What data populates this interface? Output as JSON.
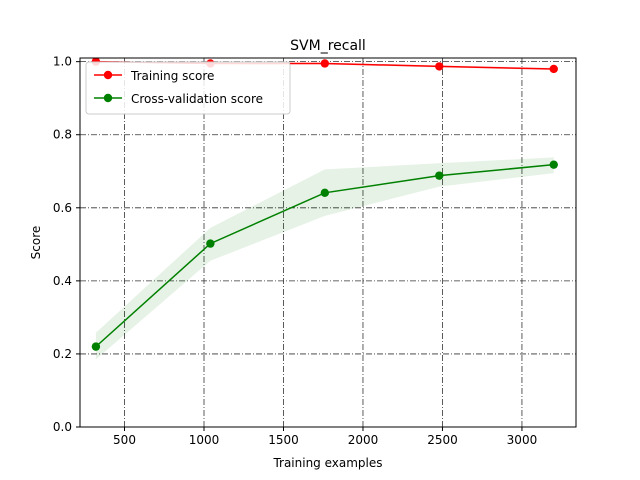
{
  "chart_data": {
    "type": "line",
    "title": "SVM_recall",
    "xlabel": "Training examples",
    "ylabel": "Score",
    "xlim": [
      220,
      3340
    ],
    "ylim": [
      0.0,
      1.01
    ],
    "xticks": [
      500,
      1000,
      1500,
      2000,
      2500,
      3000
    ],
    "yticks": [
      0.0,
      0.2,
      0.4,
      0.6,
      0.8,
      1.0
    ],
    "xtick_labels": [
      "500",
      "1000",
      "1500",
      "2000",
      "2500",
      "3000"
    ],
    "ytick_labels": [
      "0.0",
      "0.2",
      "0.4",
      "0.6",
      "0.8",
      "1.0"
    ],
    "grid": true,
    "legend_position": "top-left",
    "x": [
      320,
      1040,
      1760,
      2480,
      3200
    ],
    "series": [
      {
        "name": "Training score",
        "color": "#ff0000",
        "values": [
          1.0,
          0.995,
          0.995,
          0.987,
          0.98
        ],
        "band_low": [
          1.0,
          0.993,
          0.992,
          0.984,
          0.977
        ],
        "band_high": [
          1.0,
          0.998,
          0.998,
          0.99,
          0.983
        ]
      },
      {
        "name": "Cross-validation score",
        "color": "#008000",
        "values": [
          0.22,
          0.502,
          0.641,
          0.688,
          0.718
        ],
        "band_low": [
          0.185,
          0.455,
          0.578,
          0.658,
          0.695
        ],
        "band_high": [
          0.258,
          0.545,
          0.705,
          0.722,
          0.738
        ]
      }
    ]
  }
}
